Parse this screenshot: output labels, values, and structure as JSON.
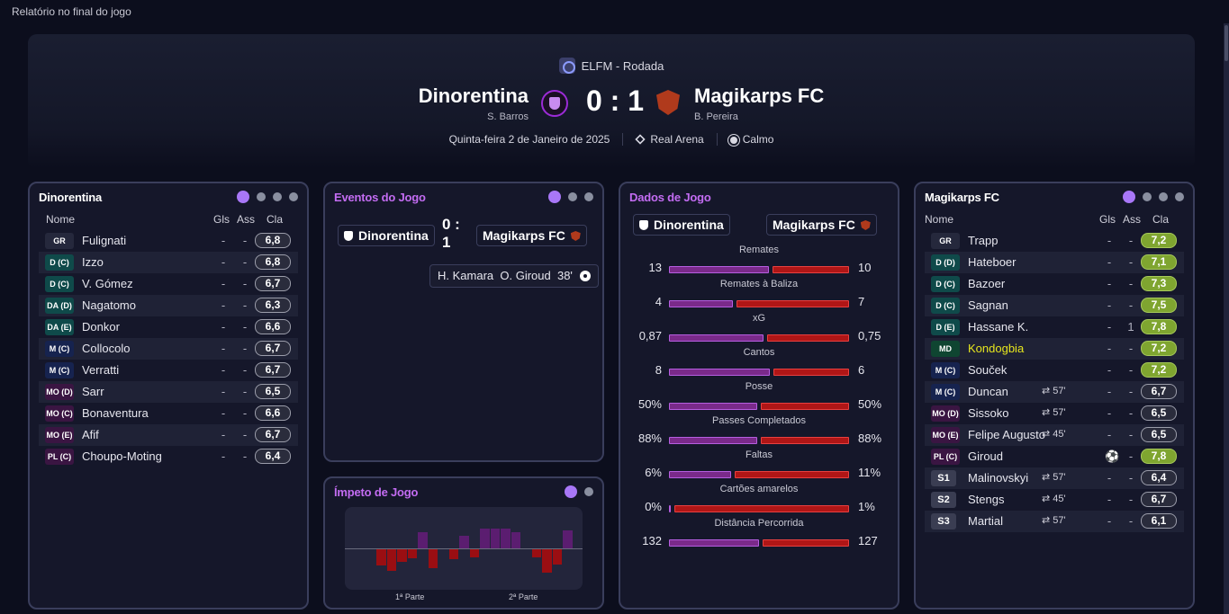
{
  "window": {
    "title": "Relatório no final do jogo"
  },
  "header": {
    "competition": "ELFM - Rodada",
    "home": {
      "name": "Dinorentina",
      "coach": "S. Barros"
    },
    "away": {
      "name": "Magikarps FC",
      "coach": "B. Pereira"
    },
    "score": "0 : 1",
    "date": "Quinta-feira 2 de Janeiro de 2025",
    "stadium": "Real Arena",
    "weather": "Calmo"
  },
  "home_lineup": {
    "title": "Dinorentina",
    "columns": {
      "name": "Nome",
      "goals": "Gls",
      "assists": "Ass",
      "rating": "Cla"
    },
    "players": [
      {
        "pos": "GR",
        "name": "Fulignati",
        "gls": "-",
        "ass": "-",
        "cla": "6,8",
        "good": false
      },
      {
        "pos": "D (C)",
        "name": "Izzo",
        "gls": "-",
        "ass": "-",
        "cla": "6,8",
        "good": false
      },
      {
        "pos": "D (C)",
        "name": "V. Gómez",
        "gls": "-",
        "ass": "-",
        "cla": "6,7",
        "good": false
      },
      {
        "pos": "DA (D)",
        "name": "Nagatomo",
        "gls": "-",
        "ass": "-",
        "cla": "6,3",
        "good": false
      },
      {
        "pos": "DA (E)",
        "name": "Donkor",
        "gls": "-",
        "ass": "-",
        "cla": "6,6",
        "good": false
      },
      {
        "pos": "M (C)",
        "name": "Collocolo",
        "gls": "-",
        "ass": "-",
        "cla": "6,7",
        "good": false
      },
      {
        "pos": "M (C)",
        "name": "Verratti",
        "gls": "-",
        "ass": "-",
        "cla": "6,7",
        "good": false
      },
      {
        "pos": "MO (D)",
        "name": "Sarr",
        "gls": "-",
        "ass": "-",
        "cla": "6,5",
        "good": false
      },
      {
        "pos": "MO (C)",
        "name": "Bonaventura",
        "gls": "-",
        "ass": "-",
        "cla": "6,6",
        "good": false
      },
      {
        "pos": "MO (E)",
        "name": "Afif",
        "gls": "-",
        "ass": "-",
        "cla": "6,7",
        "good": false
      },
      {
        "pos": "PL (C)",
        "name": "Choupo-Moting",
        "gls": "-",
        "ass": "-",
        "cla": "6,4",
        "good": false
      }
    ]
  },
  "events": {
    "title": "Eventos do Jogo",
    "home": "Dinorentina",
    "away": "Magikarps FC",
    "score": "0 : 1",
    "goal": {
      "assist": "H. Kamara",
      "scorer": "O. Giroud",
      "minute": "38'"
    }
  },
  "momentum": {
    "title": "Ímpeto de Jogo",
    "first_half": "1ª Parte",
    "second_half": "2ª Parte",
    "values": [
      0,
      0,
      -0.45,
      -0.6,
      -0.35,
      -0.25,
      0.45,
      -0.52,
      0,
      -0.28,
      0.35,
      -0.22,
      0.55,
      0.55,
      0.55,
      0.45,
      0,
      -0.22,
      -0.65,
      -0.42,
      0.5
    ]
  },
  "match_data": {
    "title": "Dados de Jogo",
    "home": "Dinorentina",
    "away": "Magikarps FC",
    "stats": [
      {
        "label": "Remates",
        "home": "13",
        "away": "10",
        "hv": 13,
        "av": 10
      },
      {
        "label": "Remates à Baliza",
        "home": "4",
        "away": "7",
        "hv": 4,
        "av": 7
      },
      {
        "label": "xG",
        "home": "0,87",
        "away": "0,75",
        "hv": 0.87,
        "av": 0.75
      },
      {
        "label": "Cantos",
        "home": "8",
        "away": "6",
        "hv": 8,
        "av": 6
      },
      {
        "label": "Posse",
        "home": "50%",
        "away": "50%",
        "hv": 50,
        "av": 50
      },
      {
        "label": "Passes Completados",
        "home": "88%",
        "away": "88%",
        "hv": 88,
        "av": 88
      },
      {
        "label": "Faltas",
        "home": "6%",
        "away": "11%",
        "hv": 6,
        "av": 11
      },
      {
        "label": "Cartões amarelos",
        "home": "0%",
        "away": "1%",
        "hv": 0,
        "av": 1
      },
      {
        "label": "Distância Percorrida",
        "home": "132",
        "away": "127",
        "hv": 132,
        "av": 127
      }
    ]
  },
  "away_lineup": {
    "title": "Magikarps FC",
    "columns": {
      "name": "Nome",
      "goals": "Gls",
      "assists": "Ass",
      "rating": "Cla"
    },
    "players": [
      {
        "pos": "GR",
        "name": "Trapp",
        "sub": "",
        "gls": "-",
        "ass": "-",
        "cla": "7,2",
        "good": true
      },
      {
        "pos": "D (D)",
        "name": "Hateboer",
        "sub": "",
        "gls": "-",
        "ass": "-",
        "cla": "7,1",
        "good": true
      },
      {
        "pos": "D (C)",
        "name": "Bazoer",
        "sub": "",
        "gls": "-",
        "ass": "-",
        "cla": "7,3",
        "good": true
      },
      {
        "pos": "D (C)",
        "name": "Sagnan",
        "sub": "",
        "gls": "-",
        "ass": "-",
        "cla": "7,5",
        "good": true
      },
      {
        "pos": "D (E)",
        "name": "Hassane K.",
        "sub": "",
        "gls": "-",
        "ass": "1",
        "cla": "7,8",
        "good": true
      },
      {
        "pos": "MD",
        "name": "Kondogbia",
        "sub": "",
        "gls": "-",
        "ass": "-",
        "cla": "7,2",
        "good": true,
        "hl": true
      },
      {
        "pos": "M (C)",
        "name": "Souček",
        "sub": "",
        "gls": "-",
        "ass": "-",
        "cla": "7,2",
        "good": true
      },
      {
        "pos": "M (C)",
        "name": "Duncan",
        "sub": "57'",
        "gls": "-",
        "ass": "-",
        "cla": "6,7",
        "good": false
      },
      {
        "pos": "MO (D)",
        "name": "Sissoko",
        "sub": "57'",
        "gls": "-",
        "ass": "-",
        "cla": "6,5",
        "good": false
      },
      {
        "pos": "MO (E)",
        "name": "Felipe Augusto",
        "sub": "45'",
        "gls": "-",
        "ass": "-",
        "cla": "6,5",
        "good": false
      },
      {
        "pos": "PL (C)",
        "name": "Giroud",
        "sub": "",
        "gls": "goal",
        "ass": "-",
        "cla": "7,8",
        "good": true
      },
      {
        "pos": "S1",
        "name": "Malinovskyi",
        "sub": "57'",
        "gls": "-",
        "ass": "-",
        "cla": "6,4",
        "good": false
      },
      {
        "pos": "S2",
        "name": "Stengs",
        "sub": "45'",
        "gls": "-",
        "ass": "-",
        "cla": "6,7",
        "good": false
      },
      {
        "pos": "S3",
        "name": "Martial",
        "sub": "57'",
        "gls": "-",
        "ass": "-",
        "cla": "6,1",
        "good": false
      }
    ]
  },
  "colors": {
    "home": "#7a2a8a",
    "away": "#b01616",
    "accent": "#a877f7",
    "good_rating": "#7fa530"
  }
}
